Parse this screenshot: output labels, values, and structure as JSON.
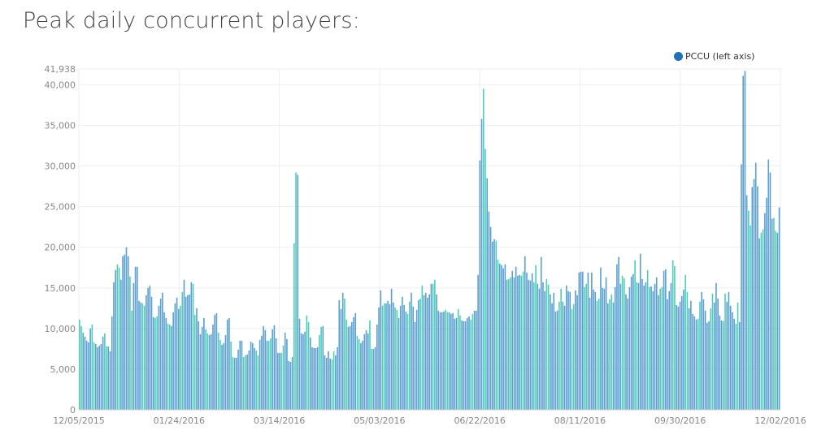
{
  "chart_data": {
    "type": "bar",
    "title": "Peak daily concurrent players:",
    "legend": {
      "label": "PCCU (left axis)",
      "color": "#2171b5",
      "placement": "top-right"
    },
    "xlabel": "",
    "ylabel": "",
    "ylim": [
      0,
      41938
    ],
    "y_max_label": "41,938",
    "y_ticks": [
      "0",
      "5,000",
      "10,000",
      "15,000",
      "20,000",
      "25,000",
      "30,000",
      "35,000",
      "40,000"
    ],
    "x_tick_labels": [
      "12/05/2015",
      "01/24/2016",
      "03/14/2016",
      "05/03/2016",
      "06/22/2016",
      "08/11/2016",
      "09/30/2016",
      "12/02/2016"
    ],
    "x_start": "12/05/2015",
    "x_end": "12/02/2016",
    "grid": true,
    "colors": {
      "weekday": "#5a9fcf",
      "weekend": "#4ecdb8",
      "grid": "#eeeeee",
      "axis": "#cccccc"
    },
    "values": [
      11100,
      10300,
      9500,
      9000,
      8500,
      8300,
      10000,
      10500,
      8300,
      8100,
      7700,
      7900,
      8100,
      9000,
      9400,
      7800,
      7800,
      7200,
      11500,
      15700,
      17200,
      17900,
      17500,
      16000,
      18900,
      19100,
      20000,
      18900,
      16400,
      12200,
      15600,
      17600,
      17600,
      13400,
      13200,
      13100,
      12800,
      14100,
      15000,
      15300,
      13900,
      11400,
      11300,
      11500,
      12800,
      13700,
      14400,
      12000,
      11300,
      10600,
      10500,
      10300,
      12000,
      13100,
      13800,
      12400,
      12800,
      14500,
      16000,
      13900,
      14100,
      14200,
      15700,
      15500,
      11700,
      12500,
      10900,
      9300,
      10200,
      11300,
      9900,
      9400,
      9200,
      9300,
      10500,
      11700,
      11900,
      9500,
      8600,
      8000,
      8200,
      9200,
      11100,
      11300,
      8400,
      6500,
      6400,
      6400,
      7400,
      8500,
      8500,
      6500,
      6700,
      6800,
      7300,
      8400,
      8200,
      7600,
      7300,
      6700,
      8600,
      9100,
      10300,
      9800,
      8500,
      8500,
      8800,
      9900,
      10400,
      8800,
      7000,
      7000,
      7000,
      7900,
      9500,
      8700,
      6000,
      5900,
      6500,
      20500,
      29200,
      28900,
      11200,
      9400,
      9300,
      9600,
      11600,
      10800,
      8900,
      7700,
      7600,
      7600,
      7700,
      9200,
      10200,
      10300,
      6700,
      6400,
      7200,
      6300,
      6200,
      7200,
      6700,
      7700,
      13500,
      12400,
      14400,
      13700,
      11100,
      10200,
      10300,
      10800,
      11400,
      11900,
      9100,
      8700,
      8200,
      8500,
      9300,
      9800,
      9400,
      11000,
      7500,
      7500,
      7700,
      10500,
      12600,
      14700,
      12800,
      13100,
      13100,
      13400,
      13000,
      14900,
      13200,
      12600,
      12300,
      11300,
      12800,
      13900,
      12900,
      12100,
      11800,
      13300,
      14400,
      12700,
      10800,
      12300,
      13500,
      13700,
      15300,
      14100,
      14400,
      13800,
      14200,
      15500,
      15500,
      16000,
      14200,
      12200,
      12000,
      12000,
      12100,
      12300,
      12000,
      12000,
      11800,
      11900,
      11200,
      11300,
      12400,
      11600,
      11000,
      10900,
      10900,
      11300,
      11500,
      11100,
      11800,
      12200,
      12200,
      16600,
      30700,
      35800,
      39500,
      32100,
      28500,
      24400,
      22500,
      20700,
      21000,
      20800,
      18500,
      18000,
      17800,
      17400,
      17900,
      16000,
      16100,
      16300,
      17100,
      16300,
      17600,
      16500,
      16600,
      16500,
      17000,
      18900,
      16900,
      16000,
      15900,
      16800,
      15700,
      17800,
      15500,
      14900,
      18800,
      15700,
      14600,
      16100,
      15400,
      14200,
      13100,
      14400,
      12100,
      12200,
      13300,
      14900,
      13300,
      12800,
      15300,
      14600,
      14500,
      12400,
      13000,
      14700,
      14100,
      16900,
      17000,
      17000,
      15100,
      15500,
      16900,
      13800,
      16900,
      14800,
      14500,
      13400,
      13700,
      17500,
      15000,
      14900,
      16300,
      13100,
      13600,
      14200,
      13200,
      15100,
      17900,
      18800,
      15500,
      16500,
      16200,
      14200,
      13700,
      15100,
      16400,
      16700,
      18400,
      15700,
      15600,
      19200,
      16100,
      15300,
      15700,
      17200,
      15100,
      15200,
      14600,
      15500,
      16300,
      14100,
      14900,
      15100,
      17100,
      17300,
      13600,
      14600,
      15600,
      18400,
      17700,
      12900,
      12700,
      13300,
      14000,
      14800,
      16600,
      14500,
      12500,
      13400,
      11800,
      11500,
      11100,
      11200,
      13300,
      14500,
      13600,
      12200,
      10700,
      10900,
      12500,
      14300,
      13200,
      15600,
      13700,
      11600,
      11000,
      10900,
      14300,
      13300,
      14500,
      12800,
      12000,
      11200,
      10600,
      13200,
      10800,
      30200,
      41100,
      41700,
      26400,
      24500,
      22700,
      27400,
      28400,
      30400,
      27500,
      21100,
      21800,
      22200,
      24200,
      26100,
      30800,
      29200,
      23500,
      23600,
      22000,
      21800,
      24900
    ]
  }
}
